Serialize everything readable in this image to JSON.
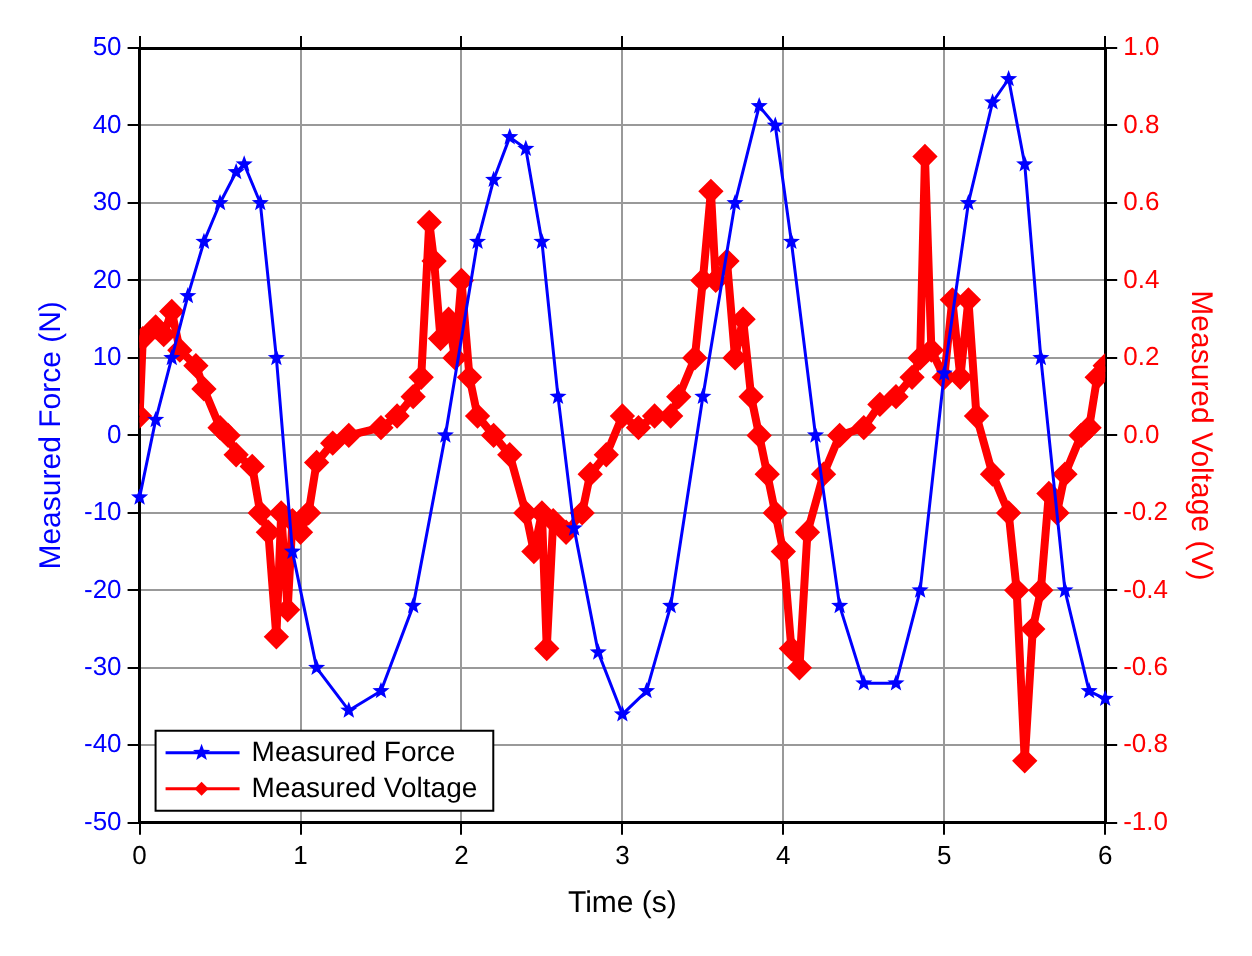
{
  "chart_data": {
    "type": "line",
    "xlabel": "Time (s)",
    "ylabel": "Measured Force (N)",
    "y2label": "Measured Voltage (V)",
    "xlim": [
      0,
      6
    ],
    "xticks": [
      0,
      1,
      2,
      3,
      4,
      5,
      6
    ],
    "ylim": [
      -50,
      50
    ],
    "yticks": [
      -50,
      -40,
      -30,
      -20,
      -10,
      0,
      10,
      20,
      30,
      40,
      50
    ],
    "y2lim": [
      -1,
      1
    ],
    "y2ticks": [
      {
        "value": -1,
        "label": "-1.0"
      },
      -0.8,
      -0.6,
      -0.4,
      -0.2,
      {
        "value": 0,
        "label": "0.0"
      },
      0.2,
      0.4,
      0.6,
      0.8,
      {
        "value": 1,
        "label": "1.0"
      }
    ],
    "grid": true,
    "legend": "bottom left",
    "line_style": "solid",
    "series": [
      {
        "name": "Measured Force",
        "color": "#0000ff",
        "marker": "star",
        "x": [
          0,
          0.1,
          0.2,
          0.3,
          0.4,
          0.5,
          0.6,
          0.65,
          0.75,
          0.85,
          0.95,
          1.1,
          1.3,
          1.5,
          1.7,
          1.9,
          2.1,
          2.2,
          2.3,
          2.4,
          2.5,
          2.6,
          2.7,
          2.85,
          3.0,
          3.15,
          3.3,
          3.5,
          3.7,
          3.85,
          3.95,
          4.05,
          4.2,
          4.35,
          4.5,
          4.7,
          4.85,
          5.0,
          5.15,
          5.3,
          5.4,
          5.5,
          5.6,
          5.75,
          5.9,
          6.0
        ],
        "values": [
          -8,
          2,
          10,
          18,
          25,
          30,
          34,
          35,
          30,
          10,
          -15,
          -30,
          -35.5,
          -33,
          -22,
          0,
          25,
          33,
          38.5,
          37,
          25,
          5,
          -12,
          -28,
          -36,
          -33,
          -22,
          5,
          30,
          42.5,
          40,
          25,
          0,
          -22,
          -32,
          -32,
          -20,
          8,
          30,
          43,
          46,
          35,
          10,
          -20,
          -33,
          -34
        ]
      },
      {
        "name": "Measured Voltage",
        "color": "#ff0000",
        "marker": "diamond",
        "axis": "y2",
        "x": [
          0,
          0.02,
          0.1,
          0.15,
          0.2,
          0.25,
          0.35,
          0.4,
          0.5,
          0.55,
          0.6,
          0.7,
          0.75,
          0.8,
          0.85,
          0.88,
          0.92,
          0.95,
          1.0,
          1.05,
          1.1,
          1.2,
          1.3,
          1.5,
          1.6,
          1.7,
          1.75,
          1.8,
          1.83,
          1.87,
          1.92,
          1.96,
          2.0,
          2.05,
          2.1,
          2.2,
          2.3,
          2.4,
          2.45,
          2.5,
          2.53,
          2.57,
          2.65,
          2.75,
          2.8,
          2.9,
          3.0,
          3.1,
          3.2,
          3.3,
          3.35,
          3.45,
          3.5,
          3.55,
          3.58,
          3.65,
          3.7,
          3.75,
          3.8,
          3.85,
          3.9,
          3.95,
          4.0,
          4.05,
          4.1,
          4.15,
          4.25,
          4.35,
          4.5,
          4.6,
          4.7,
          4.8,
          4.85,
          4.88,
          4.92,
          5.0,
          5.05,
          5.1,
          5.15,
          5.2,
          5.3,
          5.4,
          5.45,
          5.5,
          5.55,
          5.6,
          5.65,
          5.7,
          5.75,
          5.85,
          5.9,
          5.95,
          6.0
        ],
        "values": [
          0.05,
          0.25,
          0.28,
          0.26,
          0.32,
          0.22,
          0.18,
          0.12,
          0.02,
          0,
          -0.05,
          -0.08,
          -0.2,
          -0.25,
          -0.52,
          -0.2,
          -0.45,
          -0.22,
          -0.25,
          -0.2,
          -0.07,
          -0.02,
          0,
          0.02,
          0.05,
          0.1,
          0.15,
          0.55,
          0.45,
          0.25,
          0.3,
          0.2,
          0.4,
          0.15,
          0.05,
          0,
          -0.05,
          -0.2,
          -0.3,
          -0.2,
          -0.55,
          -0.22,
          -0.25,
          -0.2,
          -0.1,
          -0.05,
          0.05,
          0.02,
          0.05,
          0.05,
          0.1,
          0.2,
          0.4,
          0.63,
          0.4,
          0.45,
          0.2,
          0.3,
          0.1,
          0,
          -0.1,
          -0.2,
          -0.3,
          -0.55,
          -0.6,
          -0.25,
          -0.1,
          0,
          0.02,
          0.08,
          0.1,
          0.15,
          0.2,
          0.72,
          0.22,
          0.15,
          0.35,
          0.15,
          0.35,
          0.05,
          -0.1,
          -0.2,
          -0.4,
          -0.84,
          -0.5,
          -0.4,
          -0.15,
          -0.2,
          -0.1,
          0,
          0.02,
          0.15,
          0.18
        ]
      }
    ]
  }
}
